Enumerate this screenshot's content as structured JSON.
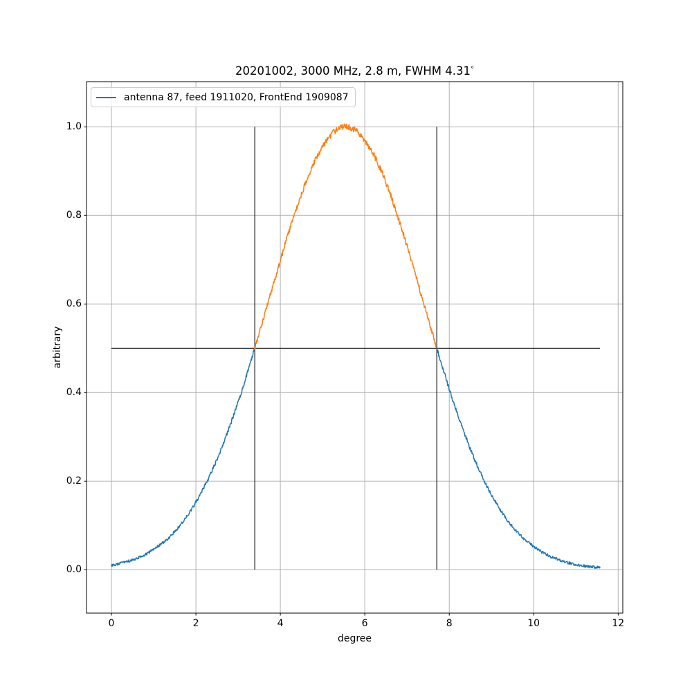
{
  "figure": {
    "title_main": "20201002, 3000 MHz, 2.8 m, FWHM 4.31",
    "title_degree_symbol": "°"
  },
  "chart_data": {
    "type": "line",
    "title": "20201002, 3000 MHz, 2.8 m, FWHM 4.31°",
    "xlabel": "degree",
    "ylabel": "arbitrary",
    "xlim": [
      -0.59,
      12.11
    ],
    "ylim": [
      -0.098,
      1.102
    ],
    "xticks": [
      0,
      2,
      4,
      6,
      8,
      10,
      12
    ],
    "yticks": [
      "0.0",
      "0.2",
      "0.4",
      "0.6",
      "0.8",
      "1.0"
    ],
    "grid": true,
    "legend": {
      "position": "upper left",
      "entries": [
        {
          "label": "antenna 87, feed 1911020, FrontEnd 1909087",
          "color": "#1f77b4"
        }
      ]
    },
    "series": [
      {
        "name": "antenna 87, feed 1911020, FrontEnd 1909087",
        "model": "gaussian",
        "center": 5.55,
        "sigma": 1.83,
        "amplitude": 1.0,
        "fwhm_deg": 4.31,
        "x_start": 0.0,
        "x_end": 11.57,
        "x_step": 0.01,
        "noise_base": 0.003,
        "noise_scale": 0.004,
        "seed": 20201002,
        "color_below_half": "#1f77b4",
        "color_above_half": "#ff7f0e",
        "half_max_crossings": [
          3.395,
          7.705
        ],
        "sampled_points": {
          "x": [
            0,
            0.5,
            1,
            1.5,
            2,
            2.5,
            3,
            3.5,
            4,
            4.5,
            5,
            5.5,
            6,
            6.5,
            7,
            7.5,
            8,
            8.5,
            9,
            9.5,
            10,
            10.5,
            11,
            11.5
          ],
          "y": [
            0.01,
            0.022,
            0.046,
            0.086,
            0.152,
            0.249,
            0.379,
            0.534,
            0.699,
            0.848,
            0.956,
            1.0,
            0.97,
            0.874,
            0.731,
            0.567,
            0.408,
            0.273,
            0.169,
            0.097,
            0.052,
            0.026,
            0.012,
            0.005
          ]
        }
      }
    ],
    "annotations": {
      "half_max_line": {
        "y": 0.5,
        "x_start": 0.0,
        "x_end": 11.57
      },
      "fwhm_lines": [
        {
          "x": 3.395,
          "y_start": 0.0,
          "y_end": 1.0
        },
        {
          "x": 7.705,
          "y_start": 0.0,
          "y_end": 1.0
        }
      ],
      "line_color": "#1a1a1a"
    },
    "colors": {
      "grid": "#b0b0b0",
      "spine": "#000000",
      "tick": "#000000",
      "text": "#000000",
      "background": "#ffffff"
    }
  }
}
